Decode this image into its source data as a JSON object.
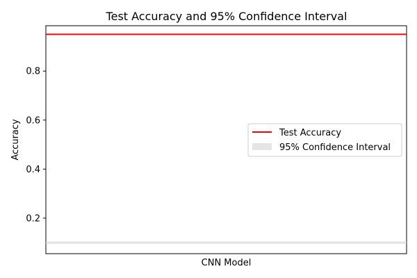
{
  "chart_data": {
    "type": "line",
    "title": "Test Accuracy and 95% Confidence Interval",
    "xlabel": "",
    "ylabel": "Accuracy",
    "x_tick_label": "CNN Model",
    "ylim": [
      0.055,
      0.985
    ],
    "yticks": [
      0.2,
      0.4,
      0.6,
      0.8
    ],
    "y_tick_labels": [
      "0.2",
      "0.4",
      "0.6",
      "0.8"
    ],
    "test_accuracy": 0.95,
    "confidence_interval": [
      0.095,
      0.105
    ],
    "series": [
      {
        "name": "Test Accuracy",
        "color": "#ff0000",
        "value": 0.95
      },
      {
        "name": "95% Confidence Interval",
        "color": "#d3d3d3",
        "range": [
          0.095,
          0.105
        ]
      }
    ],
    "grid": false,
    "legend_position": "center-right"
  }
}
